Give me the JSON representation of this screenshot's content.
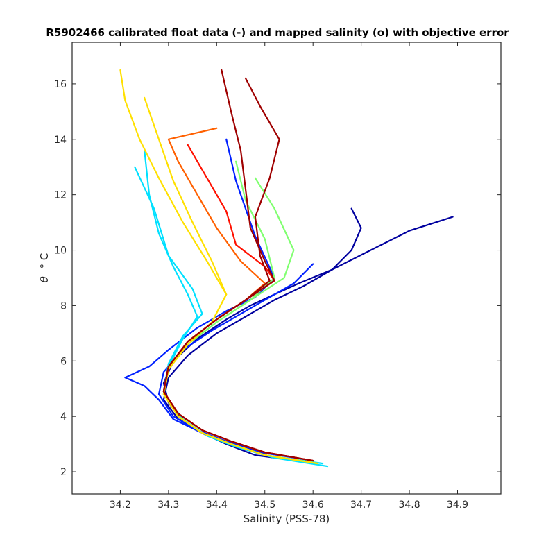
{
  "chart_data": {
    "type": "line",
    "title": "R5902466 calibrated float data (-) and mapped salinity (o) with objective error",
    "xlabel": "Salinity (PSS-78)",
    "ylabel_symbol": "θ",
    "ylabel_unit": "° C",
    "xlim": [
      34.1,
      34.99
    ],
    "ylim": [
      1.2,
      17.5
    ],
    "x_ticks": [
      34.2,
      34.3,
      34.4,
      34.5,
      34.6,
      34.7,
      34.8,
      34.9
    ],
    "x_tick_labels": [
      "34.2",
      "34.3",
      "34.4",
      "34.5",
      "34.6",
      "34.7",
      "34.8",
      "34.9"
    ],
    "y_ticks": [
      2,
      4,
      6,
      8,
      10,
      12,
      14,
      16
    ],
    "y_tick_labels": [
      "2",
      "4",
      "6",
      "8",
      "10",
      "12",
      "14",
      "16"
    ],
    "grid": false,
    "colormap": "jet",
    "colors": {
      "dark_blue": "#00009f",
      "blue": "#0020ff",
      "cyan": "#00e0ff",
      "green": "#80ff70",
      "yellow": "#ffe000",
      "orange": "#ff6000",
      "red": "#ff1000",
      "dark_red": "#9f0000"
    },
    "series": [
      {
        "color": "#00009f",
        "x": [
          34.61,
          34.5,
          34.44,
          34.38,
          34.33,
          34.3,
          34.29,
          34.31,
          34.36,
          34.42,
          34.47,
          34.52,
          34.57,
          34.64,
          34.72,
          34.8,
          34.89
        ],
        "y": [
          2.3,
          2.6,
          2.9,
          3.3,
          3.8,
          4.5,
          5.2,
          6.0,
          6.8,
          7.5,
          8.0,
          8.4,
          8.8,
          9.3,
          10.0,
          10.7,
          11.2
        ]
      },
      {
        "color": "#00009f",
        "x": [
          34.61,
          34.48,
          34.42,
          34.37,
          34.32,
          34.29,
          34.3,
          34.34,
          34.4,
          34.46,
          34.52,
          34.58,
          34.64,
          34.68,
          34.7,
          34.68
        ],
        "y": [
          2.3,
          2.6,
          3.0,
          3.4,
          3.9,
          4.6,
          5.4,
          6.2,
          7.0,
          7.6,
          8.2,
          8.7,
          9.3,
          10.0,
          10.8,
          11.5
        ]
      },
      {
        "color": "#0020ff",
        "x": [
          34.61,
          34.5,
          34.43,
          34.37,
          34.31,
          34.28,
          34.25,
          34.21,
          34.26,
          34.3,
          34.36,
          34.42,
          34.48,
          34.52,
          34.48,
          34.44,
          34.42
        ],
        "y": [
          2.3,
          2.6,
          3.0,
          3.4,
          3.9,
          4.6,
          5.1,
          5.4,
          5.8,
          6.4,
          7.2,
          7.8,
          8.3,
          9.0,
          10.5,
          12.5,
          14.0
        ]
      },
      {
        "color": "#0020ff",
        "x": [
          34.6,
          34.49,
          34.42,
          34.36,
          34.31,
          34.28,
          34.29,
          34.33,
          34.39,
          34.45,
          34.5,
          34.56,
          34.6
        ],
        "y": [
          2.4,
          2.7,
          3.1,
          3.5,
          4.0,
          4.8,
          5.6,
          6.4,
          7.1,
          7.7,
          8.2,
          8.8,
          9.5
        ]
      },
      {
        "color": "#00e0ff",
        "x": [
          34.63,
          34.52,
          34.44,
          34.38,
          34.33,
          34.29,
          34.3,
          34.33,
          34.36,
          34.34,
          34.31,
          34.28,
          34.26,
          34.25
        ],
        "y": [
          2.2,
          2.5,
          2.9,
          3.3,
          3.9,
          4.8,
          5.8,
          6.8,
          7.6,
          8.4,
          9.4,
          10.6,
          12.0,
          13.6
        ]
      },
      {
        "color": "#00e0ff",
        "x": [
          34.62,
          34.5,
          34.43,
          34.37,
          34.32,
          34.29,
          34.3,
          34.33,
          34.37,
          34.35,
          34.3,
          34.27,
          34.23
        ],
        "y": [
          2.3,
          2.6,
          3.0,
          3.4,
          4.0,
          4.9,
          5.9,
          6.9,
          7.7,
          8.6,
          9.8,
          11.5,
          13.0
        ]
      },
      {
        "color": "#80ff70",
        "x": [
          34.61,
          34.5,
          34.43,
          34.37,
          34.32,
          34.29,
          34.3,
          34.34,
          34.4,
          34.47,
          34.52,
          34.5,
          34.46,
          34.44
        ],
        "y": [
          2.3,
          2.6,
          3.0,
          3.4,
          4.0,
          4.8,
          5.7,
          6.6,
          7.4,
          8.2,
          9.0,
          10.4,
          11.8,
          13.2
        ]
      },
      {
        "color": "#80ff70",
        "x": [
          34.61,
          34.5,
          34.43,
          34.37,
          34.32,
          34.29,
          34.3,
          34.34,
          34.4,
          34.47,
          34.54,
          34.56,
          34.52,
          34.48
        ],
        "y": [
          2.3,
          2.6,
          3.0,
          3.4,
          4.0,
          4.8,
          5.7,
          6.6,
          7.4,
          8.2,
          9.0,
          10.0,
          11.5,
          12.6
        ]
      },
      {
        "color": "#ffe000",
        "x": [
          34.61,
          34.5,
          34.43,
          34.37,
          34.32,
          34.29,
          34.3,
          34.34,
          34.39,
          34.42,
          34.38,
          34.33,
          34.28,
          34.24,
          34.21,
          34.2
        ],
        "y": [
          2.3,
          2.6,
          3.0,
          3.4,
          4.0,
          4.8,
          5.7,
          6.6,
          7.4,
          8.4,
          9.6,
          11.0,
          12.6,
          14.0,
          15.4,
          16.5
        ]
      },
      {
        "color": "#ffe000",
        "x": [
          34.61,
          34.5,
          34.43,
          34.37,
          34.32,
          34.29,
          34.3,
          34.34,
          34.39,
          34.42,
          34.39,
          34.35,
          34.31,
          34.28,
          34.25
        ],
        "y": [
          2.3,
          2.6,
          3.0,
          3.4,
          4.0,
          4.8,
          5.7,
          6.6,
          7.4,
          8.4,
          9.6,
          11.0,
          12.5,
          14.0,
          15.5
        ]
      },
      {
        "color": "#ff6000",
        "x": [
          34.6,
          34.5,
          34.43,
          34.37,
          34.32,
          34.29,
          34.3,
          34.34,
          34.4,
          34.46,
          34.5,
          34.45,
          34.4,
          34.36,
          34.32,
          34.3,
          34.4
        ],
        "y": [
          2.4,
          2.7,
          3.1,
          3.5,
          4.1,
          4.9,
          5.8,
          6.7,
          7.5,
          8.2,
          8.8,
          9.6,
          10.8,
          12.0,
          13.2,
          14.0,
          14.4
        ]
      },
      {
        "color": "#ff1000",
        "x": [
          34.6,
          34.5,
          34.43,
          34.37,
          34.32,
          34.29,
          34.3,
          34.34,
          34.4,
          34.46,
          34.52,
          34.5,
          34.44,
          34.42,
          34.38,
          34.34
        ],
        "y": [
          2.4,
          2.7,
          3.1,
          3.5,
          4.1,
          4.9,
          5.8,
          6.7,
          7.5,
          8.2,
          8.9,
          9.4,
          10.2,
          11.4,
          12.6,
          13.8
        ]
      },
      {
        "color": "#9f0000",
        "x": [
          34.6,
          34.5,
          34.43,
          34.37,
          34.32,
          34.29,
          34.3,
          34.34,
          34.4,
          34.46,
          34.52,
          34.5,
          34.47,
          34.46,
          34.45,
          34.43,
          34.41
        ],
        "y": [
          2.4,
          2.7,
          3.1,
          3.5,
          4.1,
          4.9,
          5.8,
          6.7,
          7.5,
          8.2,
          8.9,
          9.6,
          10.8,
          12.2,
          13.6,
          15.0,
          16.5
        ]
      },
      {
        "color": "#9f0000",
        "x": [
          34.6,
          34.5,
          34.43,
          34.37,
          34.32,
          34.29,
          34.3,
          34.34,
          34.4,
          34.46,
          34.51,
          34.49,
          34.48,
          34.51,
          34.53,
          34.49,
          34.46
        ],
        "y": [
          2.4,
          2.7,
          3.1,
          3.5,
          4.1,
          4.9,
          5.8,
          6.7,
          7.5,
          8.2,
          8.9,
          9.8,
          11.2,
          12.6,
          14.0,
          15.2,
          16.2
        ]
      }
    ]
  }
}
